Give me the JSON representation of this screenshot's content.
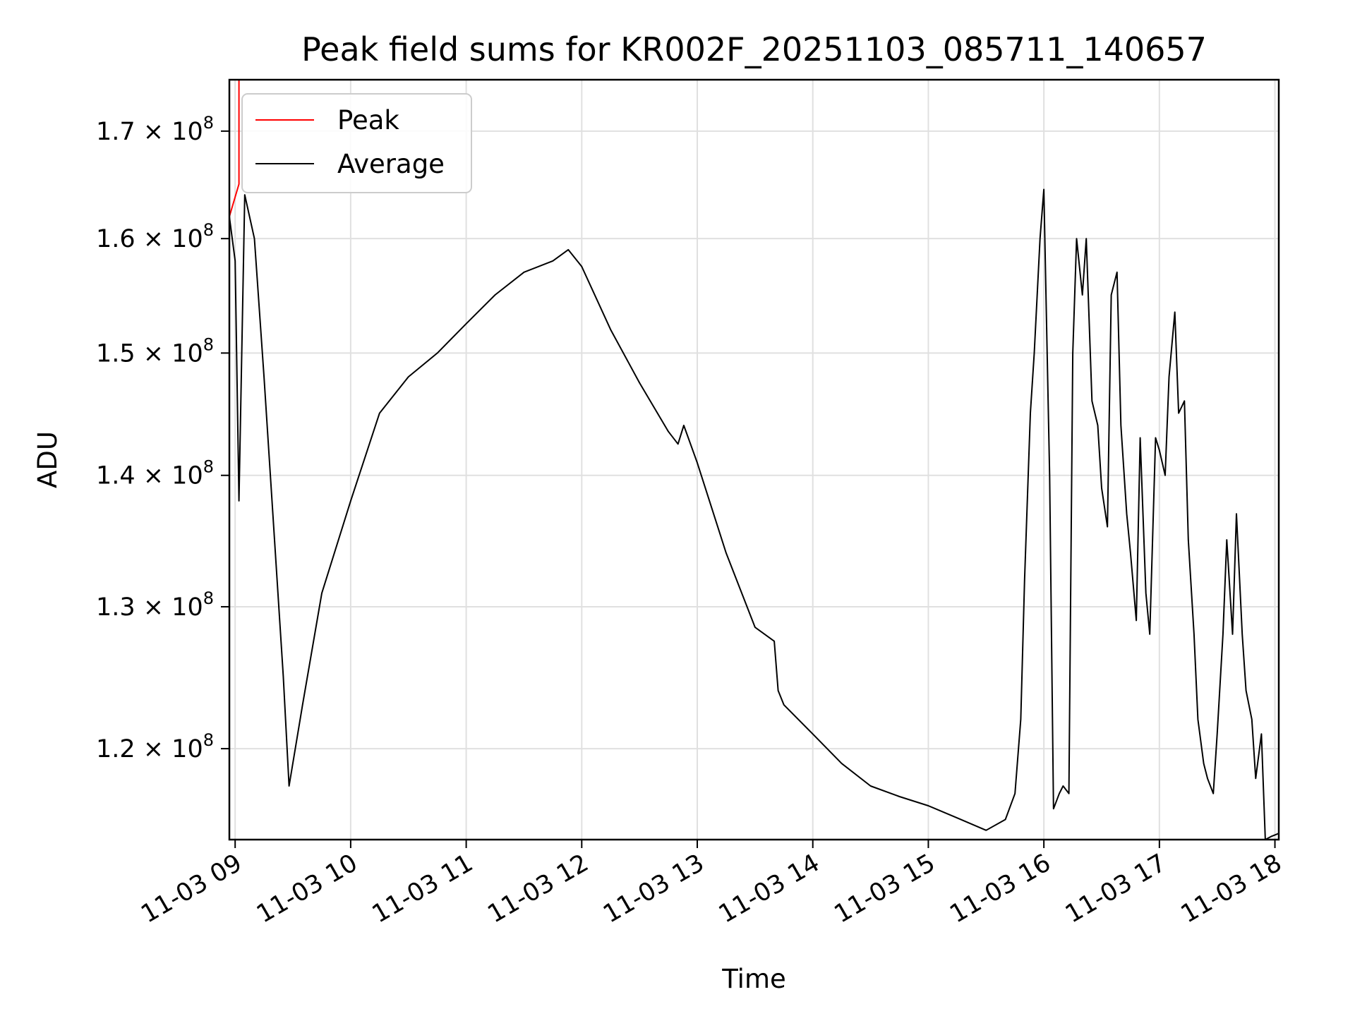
{
  "chart_data": {
    "type": "line",
    "title": "Peak field sums for KR002F_20251103_085711_140657",
    "xlabel": "Time",
    "ylabel": "ADU",
    "y_scale": "log",
    "xlim": [
      "2025-11-03 08:57",
      "2025-11-03 18:02"
    ],
    "ylim": [
      114000000,
      175000000
    ],
    "grid": true,
    "legend_position": "top-left",
    "x_ticks": [
      "2025-11-03 09:00",
      "2025-11-03 10:00",
      "2025-11-03 11:00",
      "2025-11-03 12:00",
      "2025-11-03 13:00",
      "2025-11-03 14:00",
      "2025-11-03 15:00",
      "2025-11-03 16:00",
      "2025-11-03 17:00",
      "2025-11-03 18:00"
    ],
    "x_tick_labels": [
      "11-03 09",
      "11-03 10",
      "11-03 11",
      "11-03 12",
      "11-03 13",
      "11-03 14",
      "11-03 15",
      "11-03 16",
      "11-03 17",
      "11-03 18"
    ],
    "y_ticks": [
      120000000,
      130000000,
      140000000,
      150000000,
      160000000,
      170000000
    ],
    "y_tick_labels": [
      {
        "mantissa": "1.2",
        "base": "10",
        "exp": "8"
      },
      {
        "mantissa": "1.3",
        "base": "10",
        "exp": "8"
      },
      {
        "mantissa": "1.4",
        "base": "10",
        "exp": "8"
      },
      {
        "mantissa": "1.5",
        "base": "10",
        "exp": "8"
      },
      {
        "mantissa": "1.6",
        "base": "10",
        "exp": "8"
      },
      {
        "mantissa": "1.7",
        "base": "10",
        "exp": "8"
      }
    ],
    "series": [
      {
        "name": "Peak",
        "color": "#ff0000",
        "x": [
          "2025-11-03 08:57",
          "2025-11-03 09:02",
          "2025-11-03 09:02"
        ],
        "y": [
          162000000,
          165000000,
          175000000
        ]
      },
      {
        "name": "Average",
        "color": "#000000",
        "x": [
          "2025-11-03 08:57",
          "2025-11-03 09:00",
          "2025-11-03 09:02",
          "2025-11-03 09:05",
          "2025-11-03 09:10",
          "2025-11-03 09:15",
          "2025-11-03 09:20",
          "2025-11-03 09:25",
          "2025-11-03 09:28",
          "2025-11-03 09:35",
          "2025-11-03 09:45",
          "2025-11-03 10:00",
          "2025-11-03 10:15",
          "2025-11-03 10:30",
          "2025-11-03 10:45",
          "2025-11-03 11:00",
          "2025-11-03 11:15",
          "2025-11-03 11:30",
          "2025-11-03 11:45",
          "2025-11-03 11:53",
          "2025-11-03 12:00",
          "2025-11-03 12:15",
          "2025-11-03 12:30",
          "2025-11-03 12:45",
          "2025-11-03 12:50",
          "2025-11-03 12:53",
          "2025-11-03 13:00",
          "2025-11-03 13:15",
          "2025-11-03 13:30",
          "2025-11-03 13:40",
          "2025-11-03 13:42",
          "2025-11-03 13:45",
          "2025-11-03 14:00",
          "2025-11-03 14:15",
          "2025-11-03 14:30",
          "2025-11-03 14:45",
          "2025-11-03 15:00",
          "2025-11-03 15:15",
          "2025-11-03 15:30",
          "2025-11-03 15:40",
          "2025-11-03 15:45",
          "2025-11-03 15:48",
          "2025-11-03 15:50",
          "2025-11-03 15:53",
          "2025-11-03 15:55",
          "2025-11-03 15:58",
          "2025-11-03 16:00",
          "2025-11-03 16:03",
          "2025-11-03 16:05",
          "2025-11-03 16:08",
          "2025-11-03 16:10",
          "2025-11-03 16:13",
          "2025-11-03 16:15",
          "2025-11-03 16:17",
          "2025-11-03 16:20",
          "2025-11-03 16:22",
          "2025-11-03 16:25",
          "2025-11-03 16:28",
          "2025-11-03 16:30",
          "2025-11-03 16:33",
          "2025-11-03 16:35",
          "2025-11-03 16:38",
          "2025-11-03 16:40",
          "2025-11-03 16:43",
          "2025-11-03 16:45",
          "2025-11-03 16:48",
          "2025-11-03 16:50",
          "2025-11-03 16:53",
          "2025-11-03 16:55",
          "2025-11-03 16:58",
          "2025-11-03 17:00",
          "2025-11-03 17:03",
          "2025-11-03 17:05",
          "2025-11-03 17:08",
          "2025-11-03 17:10",
          "2025-11-03 17:13",
          "2025-11-03 17:15",
          "2025-11-03 17:18",
          "2025-11-03 17:20",
          "2025-11-03 17:23",
          "2025-11-03 17:25",
          "2025-11-03 17:28",
          "2025-11-03 17:30",
          "2025-11-03 17:33",
          "2025-11-03 17:35",
          "2025-11-03 17:38",
          "2025-11-03 17:40",
          "2025-11-03 17:43",
          "2025-11-03 17:45",
          "2025-11-03 17:48",
          "2025-11-03 17:50",
          "2025-11-03 17:53",
          "2025-11-03 17:55",
          "2025-11-03 17:58",
          "2025-11-03 18:00",
          "2025-11-03 18:02"
        ],
        "y": [
          162000000,
          158000000,
          138000000,
          164000000,
          160000000,
          148000000,
          136000000,
          125000000,
          117500000,
          123000000,
          131000000,
          138000000,
          145000000,
          148000000,
          150000000,
          152500000,
          155000000,
          157000000,
          158000000,
          159000000,
          157500000,
          152000000,
          147500000,
          143500000,
          142500000,
          144000000,
          141000000,
          134000000,
          128500000,
          127500000,
          124000000,
          123000000,
          121000000,
          119000000,
          117500000,
          116800000,
          116200000,
          115400000,
          114600000,
          115300000,
          117000000,
          122000000,
          132000000,
          145000000,
          150000000,
          160000000,
          164500000,
          140000000,
          116000000,
          117000000,
          117500000,
          117000000,
          150000000,
          160000000,
          155000000,
          160000000,
          146000000,
          144000000,
          139000000,
          136000000,
          155000000,
          157000000,
          144000000,
          137000000,
          134000000,
          129000000,
          143000000,
          131000000,
          128000000,
          143000000,
          142000000,
          140000000,
          148000000,
          153500000,
          145000000,
          146000000,
          135000000,
          128000000,
          122000000,
          119000000,
          118000000,
          117000000,
          121000000,
          128000000,
          135000000,
          128000000,
          137000000,
          128000000,
          124000000,
          122000000,
          118000000,
          121000000,
          114000000,
          114200000,
          114300000,
          114400000
        ]
      }
    ]
  }
}
